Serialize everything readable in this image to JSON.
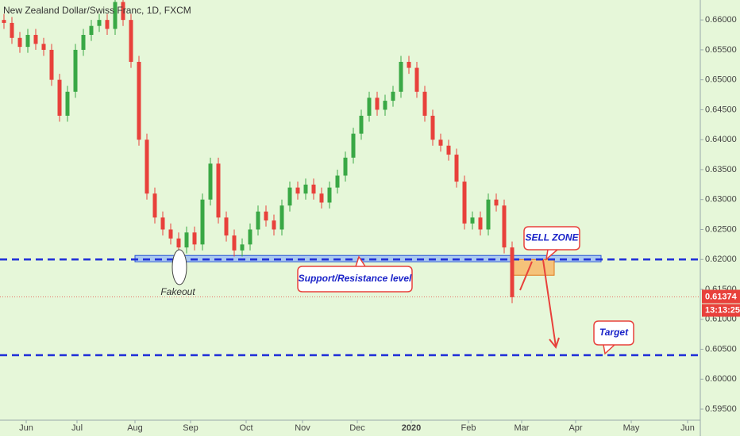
{
  "chart_data": {
    "type": "candlestick",
    "title": "New Zealand Dollar/Swiss Franc, 1D, FXCM",
    "background": "#e6f7d9",
    "up_color": "#39a845",
    "down_color": "#e8413b",
    "categories": [
      null,
      null,
      null,
      null,
      null,
      null,
      null,
      null,
      null,
      null,
      null,
      null,
      null,
      null,
      null,
      null,
      null,
      null,
      null,
      null,
      null,
      null,
      null,
      null,
      null,
      null,
      null,
      null,
      null,
      null,
      null,
      null,
      null,
      null,
      null,
      null,
      null,
      null,
      null,
      null,
      null,
      null,
      null,
      null,
      null,
      null,
      null,
      null,
      null,
      null,
      null,
      null,
      null,
      null,
      null,
      null,
      null,
      null,
      null,
      null,
      null,
      null,
      null,
      null,
      null
    ],
    "open": [
      0.66,
      0.6595,
      0.657,
      0.6555,
      0.6575,
      0.656,
      0.655,
      0.65,
      0.644,
      0.648,
      0.655,
      0.6575,
      0.659,
      0.66,
      0.6585,
      0.663,
      0.66,
      0.653,
      0.64,
      0.631,
      0.627,
      0.625,
      0.6235,
      0.622,
      0.6245,
      0.6225,
      0.63,
      0.636,
      0.627,
      0.624,
      0.6215,
      0.6225,
      0.625,
      0.628,
      0.6265,
      0.625,
      0.629,
      0.632,
      0.631,
      0.6325,
      0.631,
      0.6295,
      0.632,
      0.634,
      0.637,
      0.641,
      0.644,
      0.647,
      0.645,
      0.6465,
      0.648,
      0.653,
      0.652,
      0.648,
      0.644,
      0.64,
      0.639,
      0.6375,
      0.633,
      0.626,
      0.627,
      0.625,
      0.63,
      0.629,
      0.622
    ],
    "high": [
      0.661,
      0.6605,
      0.658,
      0.6585,
      0.6585,
      0.657,
      0.656,
      0.651,
      0.649,
      0.656,
      0.6585,
      0.66,
      0.661,
      0.661,
      0.664,
      0.664,
      0.661,
      0.654,
      0.641,
      0.632,
      0.628,
      0.626,
      0.6245,
      0.6255,
      0.6255,
      0.631,
      0.637,
      0.637,
      0.628,
      0.625,
      0.6235,
      0.626,
      0.629,
      0.629,
      0.6275,
      0.63,
      0.633,
      0.633,
      0.6335,
      0.6335,
      0.632,
      0.633,
      0.635,
      0.638,
      0.642,
      0.645,
      0.648,
      0.648,
      0.6475,
      0.649,
      0.654,
      0.654,
      0.653,
      0.649,
      0.645,
      0.641,
      0.64,
      0.6385,
      0.634,
      0.628,
      0.628,
      0.631,
      0.631,
      0.63,
      0.623
    ],
    "low": [
      0.6585,
      0.656,
      0.6545,
      0.6545,
      0.655,
      0.654,
      0.649,
      0.643,
      0.643,
      0.647,
      0.654,
      0.6565,
      0.658,
      0.6575,
      0.6575,
      0.659,
      0.652,
      0.639,
      0.63,
      0.626,
      0.624,
      0.6225,
      0.621,
      0.621,
      0.6215,
      0.6215,
      0.629,
      0.626,
      0.623,
      0.6205,
      0.6205,
      0.6215,
      0.624,
      0.6255,
      0.624,
      0.624,
      0.628,
      0.63,
      0.63,
      0.63,
      0.6285,
      0.6285,
      0.631,
      0.633,
      0.636,
      0.64,
      0.643,
      0.644,
      0.644,
      0.6455,
      0.647,
      0.651,
      0.647,
      0.643,
      0.639,
      0.638,
      0.6365,
      0.632,
      0.625,
      0.625,
      0.624,
      0.624,
      0.628,
      0.621,
      0.6127
    ],
    "close": [
      0.6595,
      0.657,
      0.6555,
      0.6575,
      0.656,
      0.655,
      0.65,
      0.644,
      0.648,
      0.655,
      0.6575,
      0.659,
      0.66,
      0.6585,
      0.663,
      0.66,
      0.653,
      0.64,
      0.631,
      0.627,
      0.625,
      0.6235,
      0.622,
      0.6245,
      0.6225,
      0.63,
      0.636,
      0.627,
      0.624,
      0.6215,
      0.6225,
      0.625,
      0.628,
      0.6265,
      0.625,
      0.629,
      0.632,
      0.631,
      0.6325,
      0.631,
      0.6295,
      0.632,
      0.634,
      0.637,
      0.641,
      0.644,
      0.647,
      0.645,
      0.6465,
      0.648,
      0.653,
      0.652,
      0.648,
      0.644,
      0.64,
      0.639,
      0.6375,
      0.633,
      0.626,
      0.627,
      0.625,
      0.63,
      0.629,
      0.622,
      0.6137
    ],
    "xlim": [
      -0.5,
      87.7
    ],
    "xticks": [
      {
        "value": 2.8,
        "label": "Jun"
      },
      {
        "value": 9.2,
        "label": "Jul"
      },
      {
        "value": 16.5,
        "label": "Aug"
      },
      {
        "value": 23.5,
        "label": "Sep"
      },
      {
        "value": 30.5,
        "label": "Oct"
      },
      {
        "value": 37.6,
        "label": "Nov"
      },
      {
        "value": 44.5,
        "label": "Dec"
      },
      {
        "value": 51.3,
        "label": "2020"
      },
      {
        "value": 58.5,
        "label": "Feb"
      },
      {
        "value": 65.2,
        "label": "Mar"
      },
      {
        "value": 72,
        "label": "Apr"
      },
      {
        "value": 79,
        "label": "May"
      },
      {
        "value": 86.1,
        "label": "Jun"
      }
    ],
    "ylim": [
      0.59315,
      0.66333
    ],
    "yticks": [
      {
        "value": 0.595,
        "label": "0.59500"
      },
      {
        "value": 0.6,
        "label": "0.60000"
      },
      {
        "value": 0.605,
        "label": "0.60500"
      },
      {
        "value": 0.61,
        "label": "0.61000"
      },
      {
        "value": 0.615,
        "label": "0.61500"
      },
      {
        "value": 0.62,
        "label": "0.62000"
      },
      {
        "value": 0.625,
        "label": "0.62500"
      },
      {
        "value": 0.63,
        "label": "0.63000"
      },
      {
        "value": 0.635,
        "label": "0.63500"
      },
      {
        "value": 0.64,
        "label": "0.64000"
      },
      {
        "value": 0.645,
        "label": "0.64500"
      },
      {
        "value": 0.65,
        "label": "0.65000"
      },
      {
        "value": 0.655,
        "label": "0.65500"
      },
      {
        "value": 0.66,
        "label": "0.66000"
      }
    ],
    "levels": [
      0.62,
      0.604
    ],
    "last_price": {
      "value": 0.61374,
      "label": "0.61374"
    },
    "countdown": "13:13:25",
    "annotations": {
      "support": "Support/Resistance level",
      "fakeout": "Fakeout",
      "sell_zone": "SELL ZONE",
      "target": "Target"
    }
  }
}
